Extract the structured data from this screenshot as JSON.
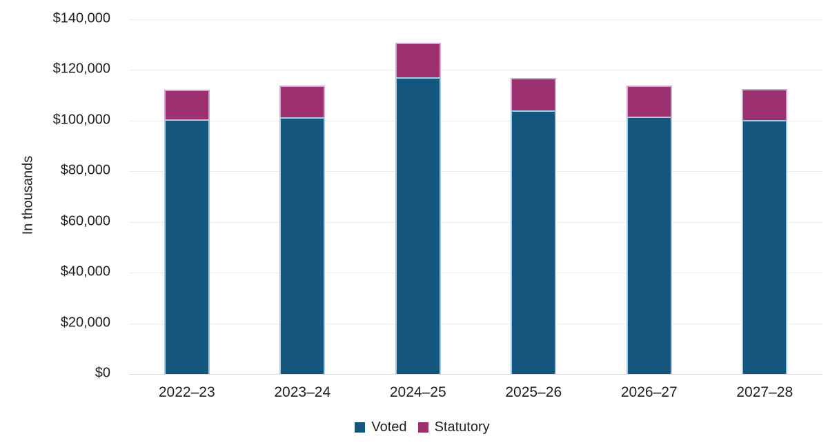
{
  "chart_data": {
    "type": "bar",
    "stacked": true,
    "title": "",
    "ylabel": "In thousands",
    "xlabel": "",
    "categories": [
      "2022–23",
      "2023–24",
      "2024–25",
      "2025–26",
      "2026–27",
      "2027–28"
    ],
    "series": [
      {
        "name": "Voted",
        "color": "#15567e",
        "border_color": "#a5cce4",
        "values": [
          100500,
          101400,
          117000,
          104100,
          101500,
          100300
        ]
      },
      {
        "name": "Statutory",
        "color": "#9d3170",
        "border_color": "#d0abd0",
        "values": [
          11800,
          12500,
          13700,
          12700,
          12300,
          12100
        ]
      }
    ],
    "totals": [
      112300,
      113900,
      130700,
      116800,
      113800,
      112400
    ],
    "ylim": [
      0,
      140000
    ],
    "ytick_step": 20000,
    "ytick_labels": [
      "$0",
      "$20,000",
      "$40,000",
      "$60,000",
      "$80,000",
      "$100,000",
      "$120,000",
      "$140,000"
    ],
    "grid": true,
    "legend_position": "bottom"
  }
}
